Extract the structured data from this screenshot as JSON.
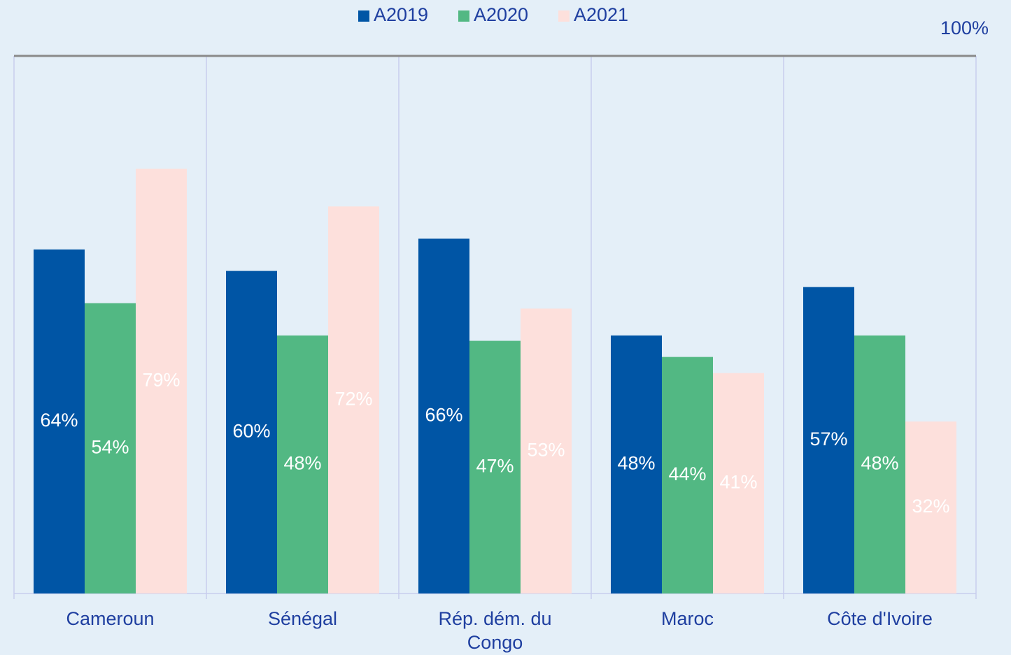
{
  "chart_data": {
    "type": "bar",
    "categories": [
      "Cameroun",
      "Sénégal",
      "Rép. dém. du Congo",
      "Maroc",
      "Côte d'Ivoire"
    ],
    "series": [
      {
        "name": "A2019",
        "color": "#0055a5",
        "values": [
          64,
          60,
          66,
          48,
          57
        ],
        "value_labels": [
          "64%",
          "60%",
          "66%",
          "48%",
          "57%"
        ]
      },
      {
        "name": "A2020",
        "color": "#52b883",
        "values": [
          54,
          48,
          47,
          44,
          48
        ],
        "value_labels": [
          "54%",
          "48%",
          "47%",
          "44%",
          "48%"
        ]
      },
      {
        "name": "A2021",
        "color": "#fde0dc",
        "values": [
          79,
          72,
          53,
          41,
          32
        ],
        "value_labels": [
          "79%",
          "72%",
          "53%",
          "41%",
          "32%"
        ]
      }
    ],
    "ylim": [
      0,
      100
    ],
    "yticks": [
      {
        "value": 100,
        "label": "100%"
      }
    ],
    "legend": "top"
  }
}
